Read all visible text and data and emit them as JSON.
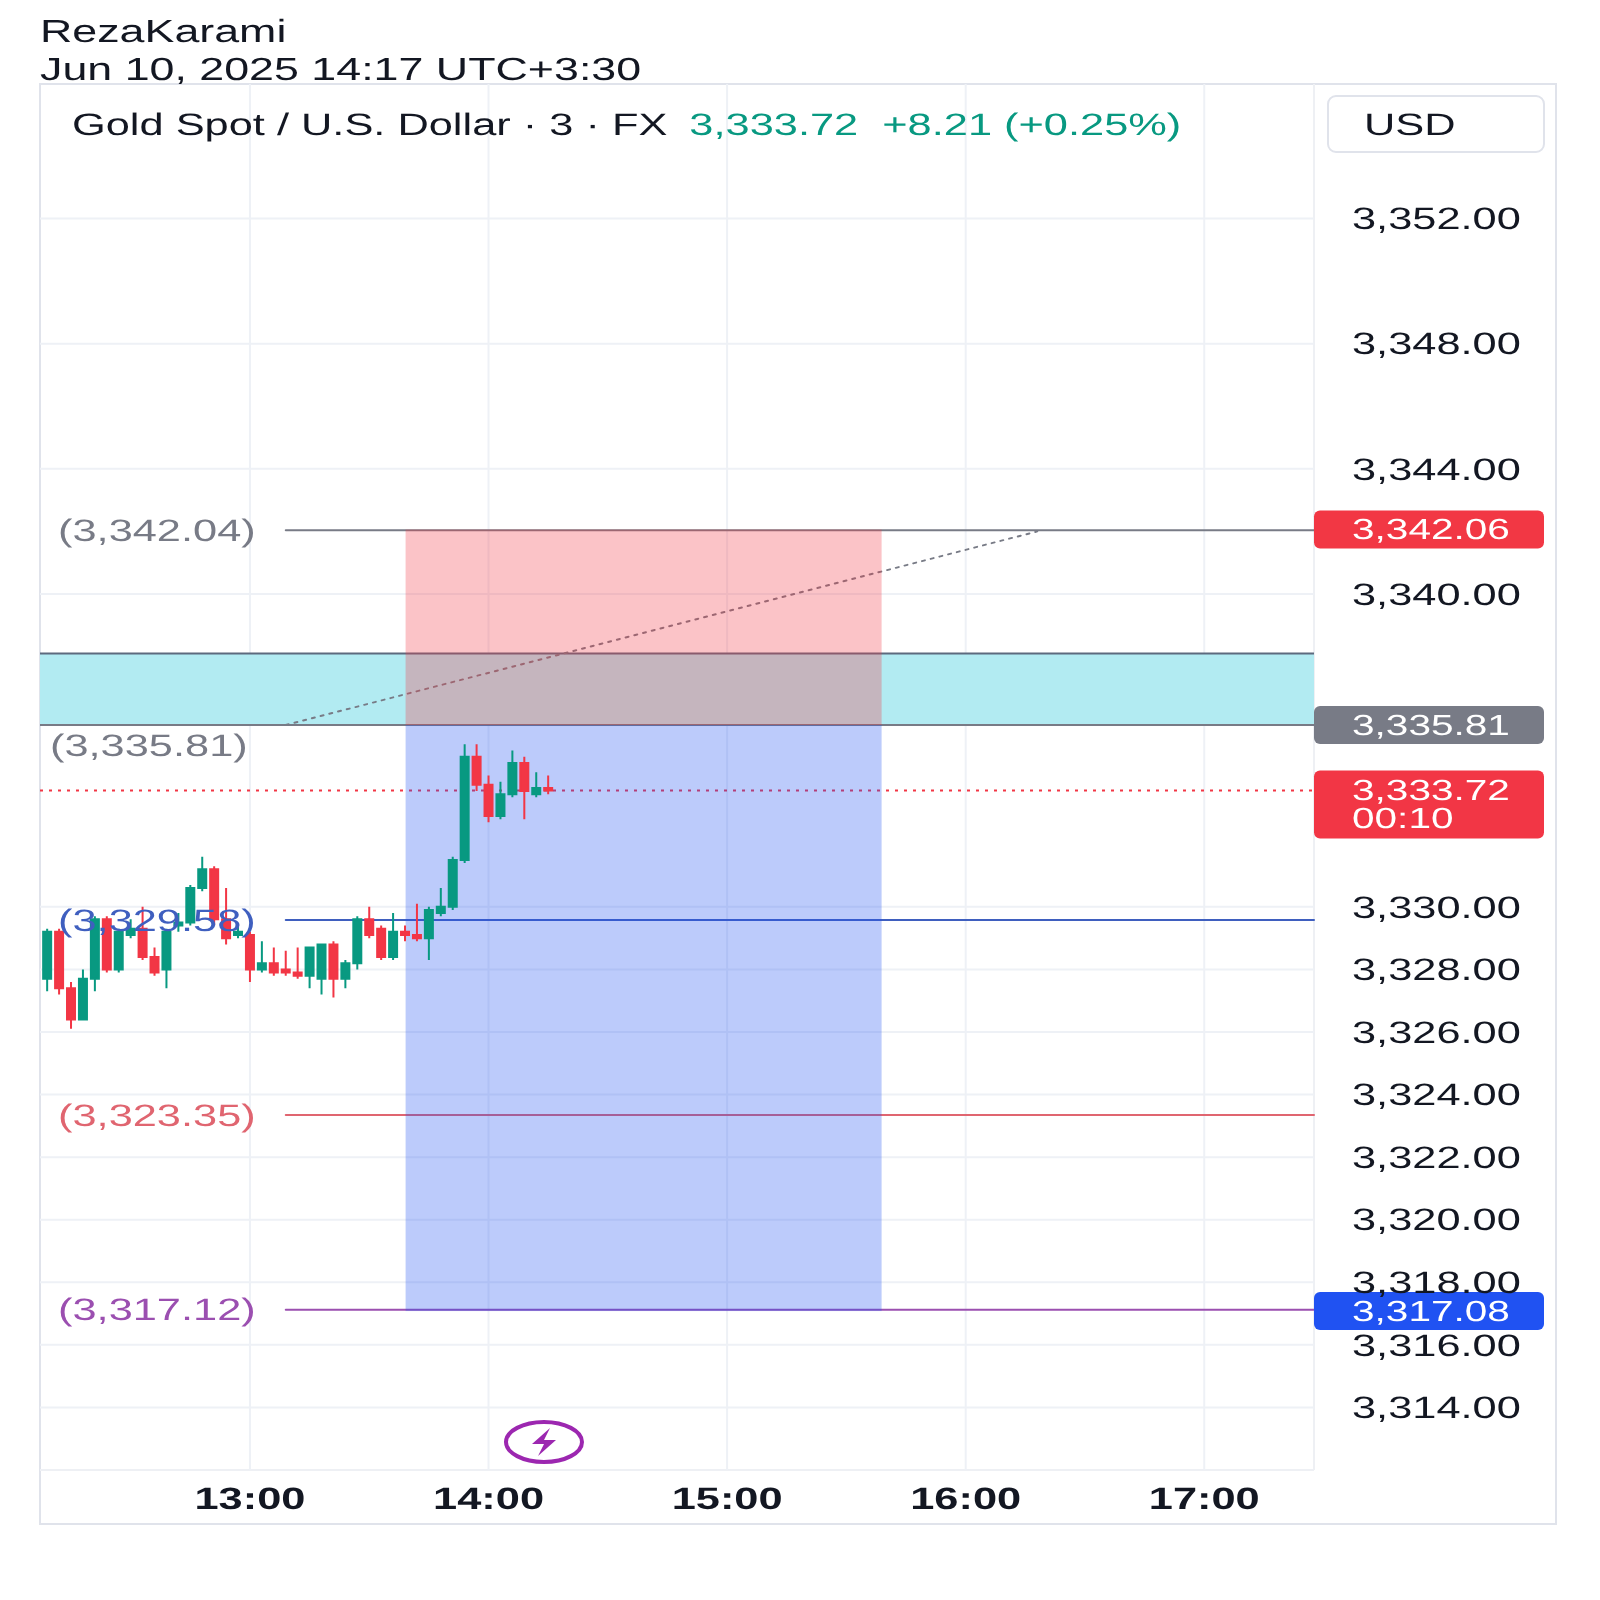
{
  "chart_data": {
    "type": "candlestick",
    "title": "Gold Spot / U.S. Dollar · 3 · FX",
    "subtitle": "3,333.72  +8.21 (+0.25%)",
    "ylabel": "USD",
    "annotations": [
      "RezaKarami",
      "Jun 10, 2025 14:17 UTC+3:30",
      {
        "text": "3,342.06",
        "x": 17.46,
        "y": 3342.06
      },
      {
        "text": "3,317.08",
        "x": 17.46,
        "y": 3317.08
      }
    ],
    "x": [
      12.15,
      12.2,
      12.25,
      12.3,
      12.35,
      12.4,
      12.45,
      12.5,
      12.55,
      12.6,
      12.65,
      12.7,
      12.75,
      12.8,
      12.85,
      12.9,
      12.95,
      13,
      13.05,
      13.1,
      13.15,
      13.2,
      13.25,
      13.3,
      13.35,
      13.4,
      13.45,
      13.5,
      13.55,
      13.6,
      13.65,
      13.7,
      13.75,
      13.8,
      13.85,
      13.9,
      13.95,
      14,
      14.05,
      14.1,
      14.15,
      14.2,
      14.25
    ],
    "ohlc": [
      [
        3327.7,
        3329.3,
        3327.3,
        3329.2
      ],
      [
        3329.2,
        3329.3,
        3327.2,
        3327.4
      ],
      [
        3327.4,
        3327.6,
        3326.1,
        3326.4
      ],
      [
        3326.4,
        3328.0,
        3326.4,
        3327.7
      ],
      [
        3327.7,
        3329.7,
        3327.3,
        3329.6
      ],
      [
        3329.6,
        3329.7,
        3327.9,
        3328.0
      ],
      [
        3328.0,
        3329.3,
        3327.9,
        3329.2
      ],
      [
        3329.1,
        3329.6,
        3329.0,
        3329.3
      ],
      [
        3329.3,
        3330.0,
        3328.3,
        3328.4
      ],
      [
        3328.4,
        3328.7,
        3327.8,
        3327.9
      ],
      [
        3328.0,
        3329.3,
        3327.4,
        3329.2
      ],
      [
        3329.4,
        3329.8,
        3329.2,
        3329.5
      ],
      [
        3329.5,
        3330.7,
        3329.4,
        3330.6
      ],
      [
        3330.6,
        3331.6,
        3330.5,
        3331.2
      ],
      [
        3331.2,
        3331.3,
        3329.4,
        3329.6
      ],
      [
        3329.6,
        3330.6,
        3328.8,
        3329.0
      ],
      [
        3329.1,
        3329.4,
        3329.0,
        3329.2
      ],
      [
        3329.1,
        3329.2,
        3327.6,
        3328.0
      ],
      [
        3328.0,
        3328.9,
        3327.9,
        3328.2
      ],
      [
        3328.2,
        3328.7,
        3327.8,
        3327.9
      ],
      [
        3328.0,
        3328.6,
        3327.8,
        3327.9
      ],
      [
        3327.9,
        3328.7,
        3327.7,
        3327.8
      ],
      [
        3327.8,
        3328.7,
        3327.4,
        3328.7
      ],
      [
        3327.7,
        3328.8,
        3327.2,
        3328.8
      ],
      [
        3328.8,
        3328.9,
        3327.1,
        3327.7
      ],
      [
        3327.7,
        3328.3,
        3327.4,
        3328.2
      ],
      [
        3328.2,
        3329.7,
        3328.0,
        3329.6
      ],
      [
        3329.6,
        3330.0,
        3329.0,
        3329.1
      ],
      [
        3329.3,
        3329.4,
        3328.3,
        3328.4
      ],
      [
        3328.4,
        3329.8,
        3328.3,
        3329.2
      ],
      [
        3329.2,
        3329.4,
        3328.9,
        3329.1
      ],
      [
        3329.1,
        3330.1,
        3328.9,
        3329.0
      ],
      [
        3329.0,
        3330.0,
        3328.3,
        3329.9
      ],
      [
        3329.8,
        3330.6,
        3329.7,
        3330.0
      ],
      [
        3330.0,
        3331.6,
        3329.9,
        3331.5
      ],
      [
        3331.5,
        3335.2,
        3331.4,
        3334.8
      ],
      [
        3334.8,
        3335.2,
        3333.7,
        3333.9
      ],
      [
        3333.9,
        3334.2,
        3332.7,
        3332.9
      ],
      [
        3332.9,
        3334.0,
        3332.8,
        3333.6
      ],
      [
        3333.6,
        3335.0,
        3333.5,
        3334.6
      ],
      [
        3334.6,
        3334.8,
        3332.8,
        3333.7
      ],
      [
        3333.6,
        3334.3,
        3333.5,
        3333.8
      ],
      [
        3333.8,
        3334.2,
        3333.6,
        3333.72
      ]
    ],
    "colors": [
      "#089981",
      "#f23645",
      "#f23645",
      "#089981",
      "#089981",
      "#f23645",
      "#089981",
      "#089981",
      "#f23645",
      "#f23645",
      "#089981",
      "#089981",
      "#089981",
      "#089981",
      "#f23645",
      "#f23645",
      "#089981",
      "#f23645",
      "#089981",
      "#f23645",
      "#f23645",
      "#f23645",
      "#089981",
      "#089981",
      "#f23645",
      "#089981",
      "#089981",
      "#f23645",
      "#f23645",
      "#089981",
      "#f23645",
      "#f23645",
      "#089981",
      "#089981",
      "#089981",
      "#089981",
      "#f23645",
      "#f23645",
      "#089981",
      "#089981",
      "#f23645",
      "#089981",
      "#f23645"
    ],
    "series": [
      {
        "type": "bar",
        "x": [
          14.65
        ],
        "base": [
          3335.81
        ],
        "values": [
          6.25
        ],
        "colors": [
          "#fbc3c7"
        ]
      },
      {
        "type": "bar",
        "x": [
          14.65
        ],
        "base": [
          3335.81
        ],
        "values": [
          -18.73
        ],
        "colors": [
          "#bccbfb"
        ]
      },
      {
        "type": "line",
        "name": "(3,342.04)",
        "x": [
          13.15,
          17.46
        ],
        "values": [
          3342.04,
          3342.04
        ],
        "color": "#787b86"
      },
      {
        "type": "line",
        "name": "(3,329.58)",
        "x": [
          13.15,
          17.46
        ],
        "values": [
          3329.58,
          3329.58
        ],
        "color": "#3f5fbf"
      },
      {
        "type": "line",
        "name": "(3,323.35)",
        "x": [
          13.15,
          17.46
        ],
        "values": [
          3323.35,
          3323.35
        ],
        "color": "#e06570"
      },
      {
        "type": "line",
        "name": "(3,317.12)",
        "x": [
          13.15,
          17.46
        ],
        "values": [
          3317.12,
          3317.12
        ],
        "color": "#9b4fb0"
      },
      {
        "type": "line",
        "x": [
          13.15,
          16.3
        ],
        "values": [
          3335.81,
          3342.0
        ],
        "color": "#787b86",
        "line_style": "dotted"
      }
    ],
    "ref_lines": [
      {
        "axis": "y",
        "value": 3338.1,
        "color": "#5d6a7e"
      },
      {
        "axis": "y",
        "value": 3335.81,
        "label": "3,335.81",
        "color": "#787b86"
      },
      {
        "axis": "y",
        "value": 3333.72,
        "label": "3,333.72\n00:10",
        "color": "#f23645",
        "line_style": "dotted"
      }
    ],
    "bands": [
      {
        "axis": "y",
        "from": 3335.81,
        "to": 3338.1,
        "label": "(3,335.81)",
        "color": "#b2ebf2"
      }
    ],
    "xlim": [
      12.12,
      17.46
    ],
    "ylim": [
      3312.0,
      3356.3
    ],
    "xticks": [
      {
        "value": 13,
        "label": "13:00"
      },
      {
        "value": 14,
        "label": "14:00"
      },
      {
        "value": 15,
        "label": "15:00"
      },
      {
        "value": 16,
        "label": "16:00"
      },
      {
        "value": 17,
        "label": "17:00"
      }
    ],
    "yticks": [
      {
        "value": 3314,
        "label": "3,314.00"
      },
      {
        "value": 3316,
        "label": "3,316.00"
      },
      {
        "value": 3318,
        "label": "3,318.00"
      },
      {
        "value": 3320,
        "label": "3,320.00"
      },
      {
        "value": 3322,
        "label": "3,322.00"
      },
      {
        "value": 3324,
        "label": "3,324.00"
      },
      {
        "value": 3326,
        "label": "3,326.00"
      },
      {
        "value": 3328,
        "label": "3,328.00"
      },
      {
        "value": 3330,
        "label": "3,330.00"
      },
      {
        "value": 3340,
        "label": "3,340.00"
      },
      {
        "value": 3344,
        "label": "3,344.00"
      },
      {
        "value": 3348,
        "label": "3,348.00"
      },
      {
        "value": 3352,
        "label": "3,352.00"
      }
    ],
    "grid": true
  }
}
